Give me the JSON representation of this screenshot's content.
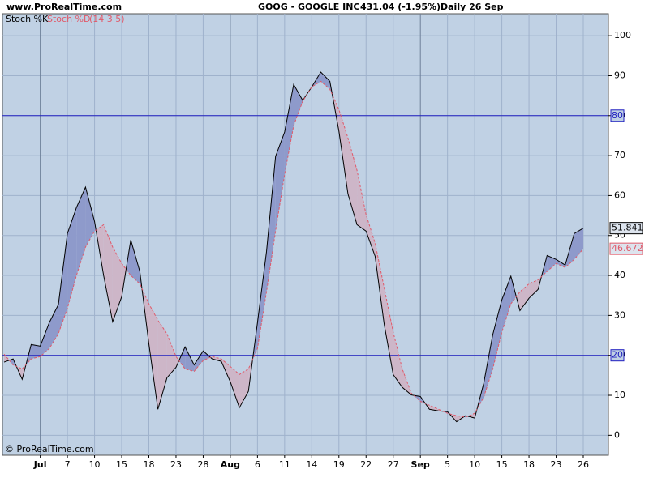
{
  "chart_data": {
    "type": "stochastic",
    "site": "www.ProRealTime.com",
    "title": "GOOG - GOOGLE INC",
    "price": "431.04 (-1.95%)",
    "period": "Daily  26 Sep",
    "params": "(14 3 5)",
    "footer": "© ProRealTime.com",
    "categories": [
      null,
      null,
      null,
      null,
      "Jul",
      null,
      null,
      "7",
      null,
      null,
      "10",
      null,
      null,
      "15",
      null,
      null,
      "18",
      null,
      null,
      "23",
      null,
      null,
      "28",
      null,
      null,
      "Aug",
      null,
      null,
      "6",
      null,
      null,
      "11",
      null,
      null,
      "14",
      null,
      null,
      "19",
      null,
      null,
      "22",
      null,
      null,
      "27",
      null,
      null,
      "Sep",
      null,
      null,
      "5",
      null,
      null,
      "10",
      null,
      null,
      "15",
      null,
      null,
      "18",
      null,
      null,
      "23",
      null,
      null,
      "26"
    ],
    "series": [
      {
        "name": "Stoch %K",
        "color": "#000000",
        "values": [
          18.3,
          19.1,
          14.0,
          22.7,
          22.3,
          28.2,
          32.7,
          50.5,
          57.0,
          62.1,
          53.5,
          40.0,
          28.4,
          34.7,
          48.9,
          41.0,
          22.9,
          6.5,
          14.4,
          17.0,
          22.1,
          17.6,
          21.1,
          19.1,
          18.5,
          13.4,
          6.9,
          11.0,
          28.2,
          46.0,
          69.8,
          75.9,
          87.8,
          83.8,
          87.2,
          90.9,
          88.6,
          76.1,
          60.4,
          52.7,
          51.1,
          44.8,
          27.8,
          15.2,
          12.0,
          10.1,
          9.7,
          6.5,
          6.1,
          5.9,
          3.4,
          4.9,
          4.3,
          13.0,
          25.2,
          33.9,
          39.8,
          31.2,
          34.3,
          36.5,
          45.0,
          44.0,
          42.6,
          50.5,
          51.841
        ]
      },
      {
        "name": "Stoch %D",
        "color": "#e05a6a",
        "values": [
          20.3,
          17.6,
          16.6,
          19.1,
          19.7,
          21.7,
          25.4,
          31.8,
          40.0,
          47.1,
          51.1,
          52.7,
          47.1,
          43.0,
          40.0,
          37.9,
          32.9,
          28.8,
          25.4,
          19.7,
          16.6,
          16.0,
          18.7,
          19.7,
          19.1,
          17.2,
          15.2,
          16.6,
          21.7,
          35.9,
          51.1,
          65.3,
          77.5,
          83.6,
          87.2,
          88.6,
          86.6,
          81.5,
          74.4,
          66.3,
          55.2,
          48.1,
          36.9,
          25.8,
          16.6,
          10.5,
          8.5,
          7.5,
          6.5,
          5.5,
          4.9,
          4.5,
          5.5,
          9.5,
          16.6,
          25.8,
          32.9,
          35.9,
          37.9,
          38.9,
          41.0,
          43.0,
          42.0,
          44.0,
          46.672
        ]
      }
    ],
    "ref_lines": [
      80,
      20
    ],
    "ylim": [
      -5,
      105.5
    ],
    "yticks": [
      0,
      10,
      20,
      30,
      40,
      50,
      60,
      70,
      80,
      90,
      100
    ],
    "grid": true,
    "background": "#c0d1e4",
    "fill_up": "#8e9acb",
    "fill_down": "#cdb6c8"
  }
}
